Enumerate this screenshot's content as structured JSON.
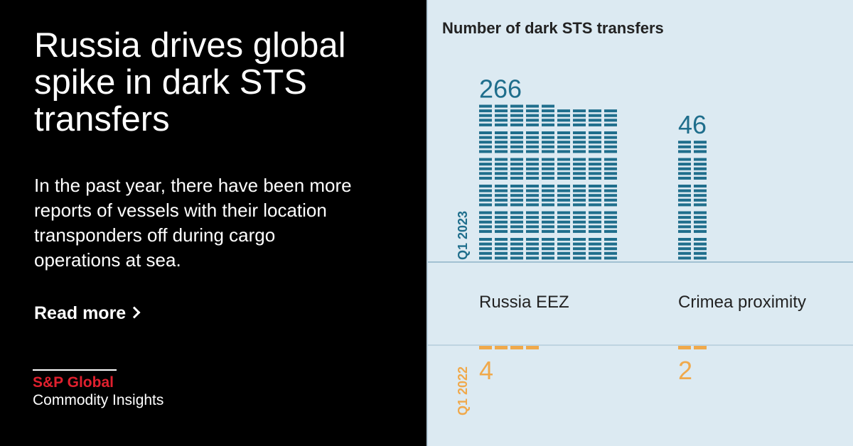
{
  "headline": "Russia drives global spike in dark STS transfers",
  "body": "In the past year, there have been more reports of vessels with their location transponders off during cargo operations at sea.",
  "read_more": "Read more",
  "logo": {
    "brand": "S&P Global",
    "sub": "Commodity Insights"
  },
  "colors": {
    "current": "#1f6e8c",
    "previous": "#f0a94b",
    "panel": "#dceaf2"
  },
  "chart_data": {
    "type": "bar",
    "title": "Number of dark STS transfers",
    "categories": [
      "Russia EEZ",
      "Crimea proximity"
    ],
    "series": [
      {
        "name": "Q1 2023",
        "values": [
          266,
          46
        ]
      },
      {
        "name": "Q1 2022",
        "values": [
          4,
          2
        ]
      }
    ],
    "unit_mark": "each dash = 1 transfer"
  }
}
